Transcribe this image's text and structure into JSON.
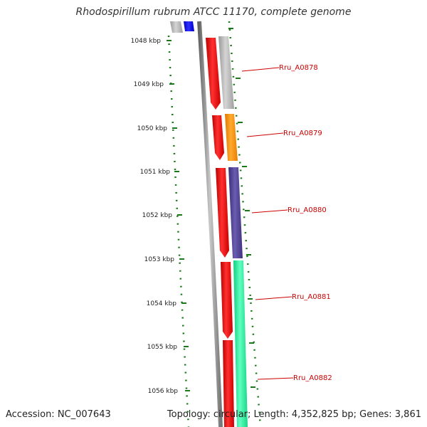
{
  "title": "Rhodospirillum rubrum ATCC 11170, complete genome",
  "accession": "Accession: NC_007643",
  "topology": "Topology: circular; Length: 4,352,825 bp; Genes: 3,861",
  "tick_labels": [
    "1048 kbp",
    "1049 kbp",
    "1050 kbp",
    "1051 kbp",
    "1052 kbp",
    "1053 kbp",
    "1054 kbp",
    "1055 kbp",
    "1056 kbp"
  ],
  "gene_labels": [
    "Rru_A0878",
    "Rru_A0879",
    "Rru_A0880",
    "Rru_A0881",
    "Rru_A0882"
  ],
  "colors": {
    "strand_red": "#ee0000",
    "gene_gray": "#b0b0b0",
    "gene_orange": "#ff8c00",
    "gene_purple": "#4a3c8c",
    "gene_green": "#22ee99",
    "gene_blue": "#0000dd",
    "label_red": "#cc0000",
    "tick_green": "#1a7a1a",
    "backbone": "#888888"
  }
}
